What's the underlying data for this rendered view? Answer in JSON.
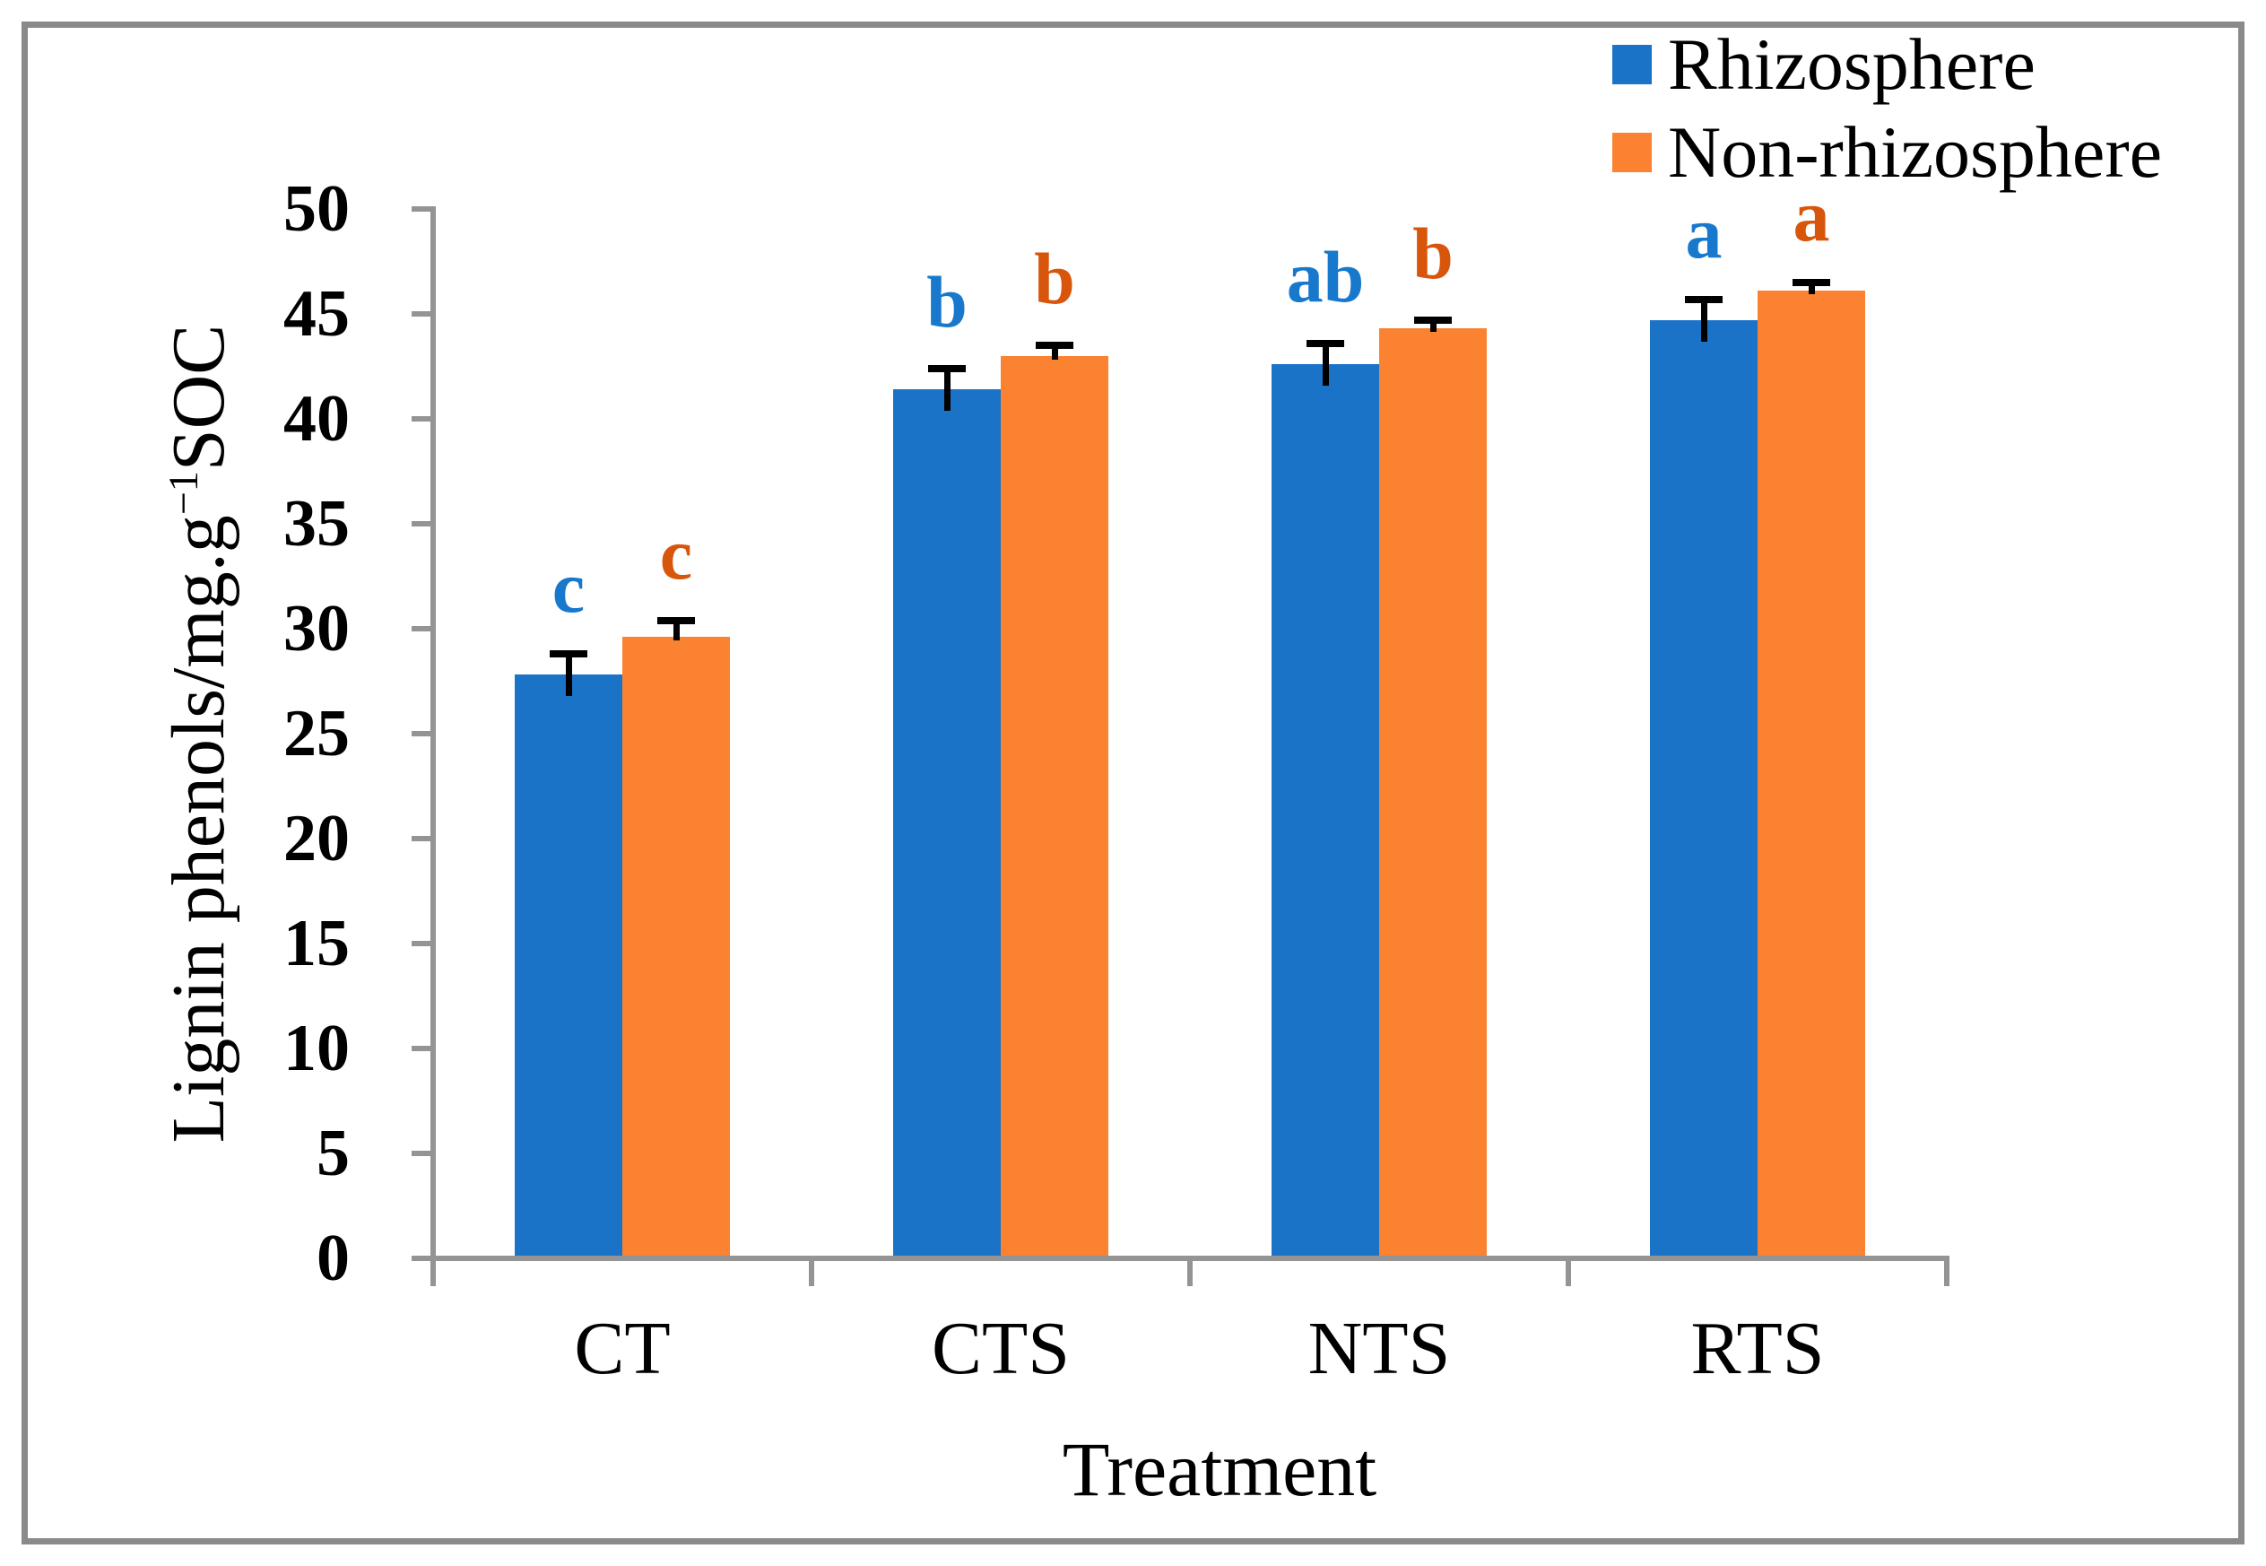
{
  "figure": {
    "background": "#FFFFFF",
    "frame_color": "#8A8A8A"
  },
  "legend": {
    "position": "top-right",
    "items": [
      {
        "label": "Rhizosphere",
        "color": "#1B73C8"
      },
      {
        "label": "Non-rhizosphere",
        "color": "#FA8231"
      }
    ]
  },
  "chart_data": {
    "type": "bar",
    "title": "",
    "xlabel": "Treatment",
    "ylabel": "Lignin phenols/mg.g−1SOC",
    "ylabel_parts": {
      "prefix": "Lignin phenols/mg.g",
      "superscript": "−1",
      "suffix": "SOC"
    },
    "categories": [
      "CT",
      "CTS",
      "NTS",
      "RTS"
    ],
    "series": [
      {
        "name": "Rhizosphere",
        "color": "#1B73C8",
        "letter_color": "#1878CC",
        "values": [
          27.8,
          41.4,
          42.6,
          44.7
        ],
        "errors": [
          1.0,
          1.0,
          1.0,
          1.0
        ],
        "letters": [
          "c",
          "b",
          "ab",
          "a"
        ]
      },
      {
        "name": "Non-rhizosphere",
        "color": "#FA8231",
        "letter_color": "#D8560C",
        "values": [
          29.6,
          43.0,
          44.3,
          46.1
        ],
        "errors": [
          0.8,
          0.5,
          0.4,
          0.4
        ],
        "letters": [
          "c",
          "b",
          "b",
          "a"
        ]
      }
    ],
    "ylim": [
      0,
      50
    ],
    "yticks": [
      0,
      5,
      10,
      15,
      20,
      25,
      30,
      35,
      40,
      45,
      50
    ],
    "grid": false,
    "axis_color": "#949494",
    "error_bar_color": "#000000",
    "legend_position": "top-right"
  }
}
